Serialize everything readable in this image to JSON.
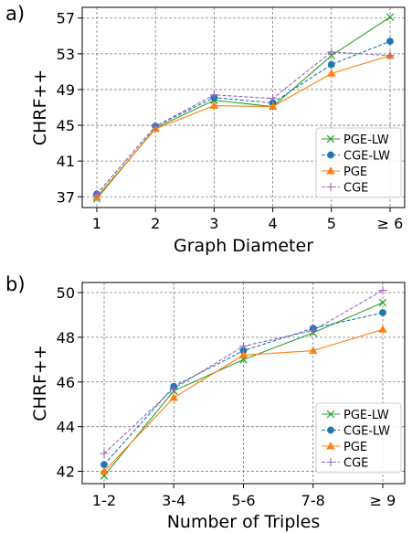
{
  "chart_data": [
    {
      "panel": "a)",
      "type": "line",
      "xlabel": "Graph Diameter",
      "ylabel": "CHRF++",
      "categories": [
        "1",
        "2",
        "3",
        "4",
        "5",
        "≥ 6"
      ],
      "yticks": [
        37,
        41,
        45,
        49,
        53,
        57
      ],
      "ylim": [
        35.8,
        58.2
      ],
      "grid": true,
      "legend_position": "bottom-right",
      "series": [
        {
          "name": "PGE-LW",
          "color": "#2ca02c",
          "marker": "x",
          "dash": "solid",
          "values": [
            36.8,
            44.7,
            47.8,
            47.1,
            52.8,
            57.1
          ]
        },
        {
          "name": "CGE-LW",
          "color": "#1f77b4",
          "marker": "circle",
          "dash": "dashed",
          "values": [
            37.3,
            44.9,
            48.1,
            47.5,
            51.8,
            54.4
          ]
        },
        {
          "name": "PGE",
          "color": "#ff7f0e",
          "marker": "triangle",
          "dash": "solid",
          "values": [
            37.0,
            44.6,
            47.2,
            47.1,
            50.8,
            52.8
          ]
        },
        {
          "name": "CGE",
          "color": "#9467bd",
          "marker": "plus",
          "dash": "dashed",
          "values": [
            37.3,
            44.9,
            48.4,
            48.0,
            53.2,
            52.8
          ]
        }
      ]
    },
    {
      "panel": "b)",
      "type": "line",
      "xlabel": "Number of Triples",
      "ylabel": "CHRF++",
      "categories": [
        "1-2",
        "3-4",
        "5-6",
        "7-8",
        "≥ 9"
      ],
      "yticks": [
        42,
        44,
        46,
        48,
        50
      ],
      "ylim": [
        41.45,
        50.45
      ],
      "grid": true,
      "legend_position": "bottom-right",
      "series": [
        {
          "name": "PGE-LW",
          "color": "#2ca02c",
          "marker": "x",
          "dash": "solid",
          "values": [
            41.8,
            45.6,
            47.0,
            48.2,
            49.55
          ]
        },
        {
          "name": "CGE-LW",
          "color": "#1f77b4",
          "marker": "circle",
          "dash": "dashed",
          "values": [
            42.3,
            45.8,
            47.4,
            48.4,
            49.1
          ]
        },
        {
          "name": "PGE",
          "color": "#ff7f0e",
          "marker": "triangle",
          "dash": "solid",
          "values": [
            42.0,
            45.3,
            47.2,
            47.4,
            48.35
          ]
        },
        {
          "name": "CGE",
          "color": "#9467bd",
          "marker": "plus",
          "dash": "dashed",
          "values": [
            42.8,
            45.7,
            47.6,
            48.3,
            50.1
          ]
        }
      ]
    }
  ]
}
